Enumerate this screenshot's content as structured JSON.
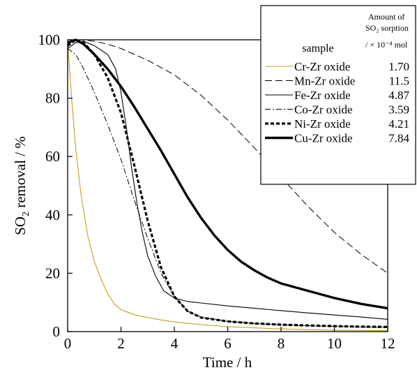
{
  "chart_data": {
    "type": "line",
    "xlabel": "Time / h",
    "ylabel": "SO",
    "ylabel_sub": "2",
    "ylabel_rest": " removal / %",
    "xlim": [
      0,
      12
    ],
    "ylim": [
      0,
      100
    ],
    "xticks": [
      "0",
      "2",
      "4",
      "6",
      "8",
      "10",
      "12"
    ],
    "yticks": [
      "0",
      "20",
      "40",
      "60",
      "80",
      "100"
    ],
    "grid": false,
    "legend_position": "top-right",
    "legend": {
      "sample_header": "sample",
      "amount_header_line1": "Amount of",
      "amount_header_line2": "SO₂ sorption",
      "amount_header_line3": "/ × 10⁻⁴ mol"
    },
    "series": [
      {
        "name": "Cr-Zr oxide",
        "amount": "1.70",
        "color": "#c4a018",
        "style": "solid-thin",
        "points": [
          [
            0,
            100
          ],
          [
            0.05,
            93
          ],
          [
            0.15,
            80
          ],
          [
            0.3,
            63
          ],
          [
            0.5,
            47
          ],
          [
            0.75,
            33
          ],
          [
            1.0,
            24
          ],
          [
            1.25,
            18
          ],
          [
            1.5,
            13
          ],
          [
            1.75,
            9.5
          ],
          [
            2.0,
            7.5
          ],
          [
            2.5,
            5.8
          ],
          [
            3.0,
            4.8
          ],
          [
            3.5,
            4.0
          ],
          [
            4.0,
            3.3
          ],
          [
            5.0,
            2.4
          ],
          [
            6.0,
            1.7
          ],
          [
            7.0,
            1.3
          ],
          [
            8.0,
            0.9
          ],
          [
            9.0,
            0.7
          ],
          [
            10.0,
            0.5
          ],
          [
            11.0,
            0.4
          ],
          [
            12.0,
            0.3
          ]
        ]
      },
      {
        "name": "Mn-Zr oxide",
        "amount": "11.5",
        "color": "#000000",
        "style": "dash",
        "points": [
          [
            0,
            99
          ],
          [
            0.5,
            100
          ],
          [
            1.0,
            99.5
          ],
          [
            1.5,
            98.5
          ],
          [
            2.0,
            97
          ],
          [
            3.0,
            93
          ],
          [
            4.0,
            88
          ],
          [
            5.0,
            81
          ],
          [
            6.0,
            72.5
          ],
          [
            7.0,
            63
          ],
          [
            8.0,
            53
          ],
          [
            9.0,
            43
          ],
          [
            10.0,
            34
          ],
          [
            11.0,
            26.5
          ],
          [
            12.0,
            20
          ]
        ]
      },
      {
        "name": "Fe-Zr oxide",
        "amount": "4.87",
        "color": "#000000",
        "style": "solid-thin",
        "points": [
          [
            0,
            97
          ],
          [
            0.3,
            99
          ],
          [
            0.6,
            99.5
          ],
          [
            1.0,
            98
          ],
          [
            1.5,
            95
          ],
          [
            1.8,
            90
          ],
          [
            2.0,
            82
          ],
          [
            2.2,
            70
          ],
          [
            2.4,
            56
          ],
          [
            2.6,
            44
          ],
          [
            2.8,
            34
          ],
          [
            3.0,
            26
          ],
          [
            3.3,
            19
          ],
          [
            3.6,
            14
          ],
          [
            4.0,
            11.5
          ],
          [
            4.5,
            10.3
          ],
          [
            5.0,
            9.8
          ],
          [
            6.0,
            8.8
          ],
          [
            7.0,
            8
          ],
          [
            8.0,
            7.2
          ],
          [
            9.0,
            6.4
          ],
          [
            10.0,
            5.7
          ],
          [
            11.0,
            5
          ],
          [
            12.0,
            4.2
          ]
        ]
      },
      {
        "name": "Co-Zr oxide",
        "amount": "3.59",
        "color": "#000000",
        "style": "dashdot",
        "points": [
          [
            0,
            97
          ],
          [
            0.3,
            95
          ],
          [
            0.6,
            90
          ],
          [
            1.0,
            82
          ],
          [
            1.5,
            71
          ],
          [
            2.0,
            59
          ],
          [
            2.5,
            45
          ],
          [
            3.0,
            32
          ],
          [
            3.5,
            20
          ],
          [
            4.0,
            12
          ],
          [
            4.5,
            7
          ],
          [
            5.0,
            5
          ],
          [
            6.0,
            3.5
          ],
          [
            7.0,
            2.8
          ],
          [
            8.0,
            2.3
          ],
          [
            9.0,
            2
          ],
          [
            10.0,
            1.8
          ],
          [
            11.0,
            1.6
          ],
          [
            12.0,
            1.5
          ]
        ]
      },
      {
        "name": "Ni-Zr oxide",
        "amount": "4.21",
        "color": "#000000",
        "style": "dot-thick",
        "points": [
          [
            0,
            98
          ],
          [
            0.3,
            100
          ],
          [
            0.6,
            99
          ],
          [
            1.0,
            95
          ],
          [
            1.5,
            87
          ],
          [
            2.0,
            75
          ],
          [
            2.5,
            57
          ],
          [
            3.0,
            38
          ],
          [
            3.5,
            22
          ],
          [
            4.0,
            12
          ],
          [
            4.5,
            7
          ],
          [
            5.0,
            4.8
          ],
          [
            6.0,
            3.5
          ],
          [
            7.0,
            2.8
          ],
          [
            8.0,
            2.4
          ],
          [
            9.0,
            2.1
          ],
          [
            10.0,
            1.9
          ],
          [
            11.0,
            1.7
          ],
          [
            12.0,
            1.6
          ]
        ]
      },
      {
        "name": "Cu-Zr oxide",
        "amount": "7.84",
        "color": "#000000",
        "style": "solid-thick",
        "points": [
          [
            0,
            99
          ],
          [
            0.3,
            100
          ],
          [
            0.6,
            98.5
          ],
          [
            1.0,
            95
          ],
          [
            1.5,
            90
          ],
          [
            2.0,
            84
          ],
          [
            2.5,
            77
          ],
          [
            3.0,
            69.5
          ],
          [
            3.5,
            62
          ],
          [
            4.0,
            54
          ],
          [
            4.5,
            46
          ],
          [
            5.0,
            39
          ],
          [
            5.5,
            33
          ],
          [
            6.0,
            28
          ],
          [
            6.5,
            24
          ],
          [
            7.0,
            21
          ],
          [
            7.5,
            18.5
          ],
          [
            8.0,
            16.5
          ],
          [
            9.0,
            14
          ],
          [
            10.0,
            11.5
          ],
          [
            11.0,
            9.5
          ],
          [
            12.0,
            8
          ]
        ]
      }
    ]
  }
}
